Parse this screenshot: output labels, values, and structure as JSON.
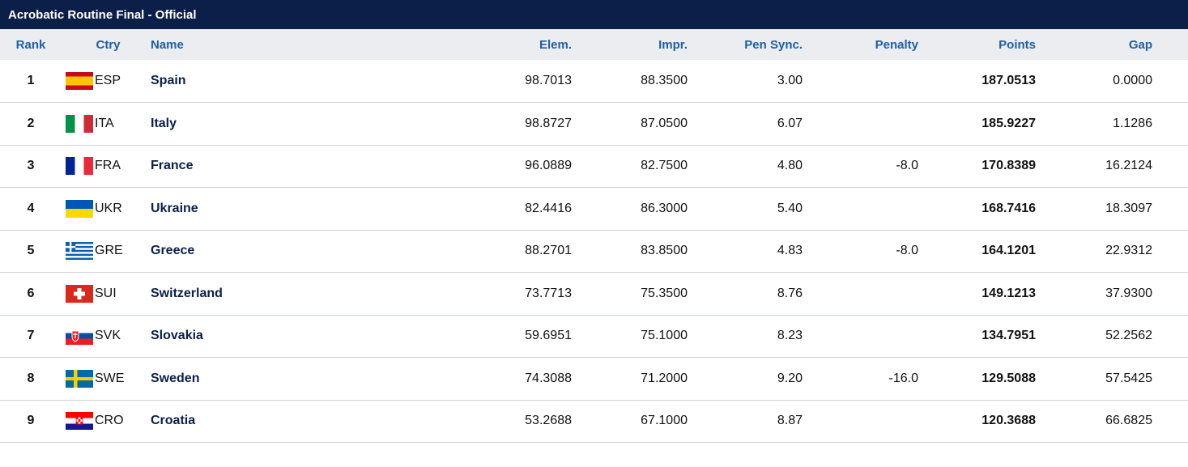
{
  "title": "Acrobatic Routine Final  -  Official",
  "headers": {
    "rank": "Rank",
    "ctry": "Ctry",
    "name": "Name",
    "elem": "Elem.",
    "impr": "Impr.",
    "pensync": "Pen Sync.",
    "penalty": "Penalty",
    "points": "Points",
    "gap": "Gap"
  },
  "rows": [
    {
      "rank": "1",
      "ctry": "ESP",
      "flag": "esp-flag-icon",
      "name": "Spain",
      "elem": "98.7013",
      "impr": "88.3500",
      "pensync": "3.00",
      "penalty": "",
      "points": "187.0513",
      "gap": "0.0000"
    },
    {
      "rank": "2",
      "ctry": "ITA",
      "flag": "ita-flag-icon",
      "name": "Italy",
      "elem": "98.8727",
      "impr": "87.0500",
      "pensync": "6.07",
      "penalty": "",
      "points": "185.9227",
      "gap": "1.1286"
    },
    {
      "rank": "3",
      "ctry": "FRA",
      "flag": "fra-flag-icon",
      "name": "France",
      "elem": "96.0889",
      "impr": "82.7500",
      "pensync": "4.80",
      "penalty": "-8.0",
      "points": "170.8389",
      "gap": "16.2124"
    },
    {
      "rank": "4",
      "ctry": "UKR",
      "flag": "ukr-flag-icon",
      "name": "Ukraine",
      "elem": "82.4416",
      "impr": "86.3000",
      "pensync": "5.40",
      "penalty": "",
      "points": "168.7416",
      "gap": "18.3097"
    },
    {
      "rank": "5",
      "ctry": "GRE",
      "flag": "gre-flag-icon",
      "name": "Greece",
      "elem": "88.2701",
      "impr": "83.8500",
      "pensync": "4.83",
      "penalty": "-8.0",
      "points": "164.1201",
      "gap": "22.9312"
    },
    {
      "rank": "6",
      "ctry": "SUI",
      "flag": "sui-flag-icon",
      "name": "Switzerland",
      "elem": "73.7713",
      "impr": "75.3500",
      "pensync": "8.76",
      "penalty": "",
      "points": "149.1213",
      "gap": "37.9300"
    },
    {
      "rank": "7",
      "ctry": "SVK",
      "flag": "svk-flag-icon",
      "name": "Slovakia",
      "elem": "59.6951",
      "impr": "75.1000",
      "pensync": "8.23",
      "penalty": "",
      "points": "134.7951",
      "gap": "52.2562"
    },
    {
      "rank": "8",
      "ctry": "SWE",
      "flag": "swe-flag-icon",
      "name": "Sweden",
      "elem": "74.3088",
      "impr": "71.2000",
      "pensync": "9.20",
      "penalty": "-16.0",
      "points": "129.5088",
      "gap": "57.5425"
    },
    {
      "rank": "9",
      "ctry": "CRO",
      "flag": "cro-flag-icon",
      "name": "Croatia",
      "elem": "53.2688",
      "impr": "67.1000",
      "pensync": "8.87",
      "penalty": "",
      "points": "120.3688",
      "gap": "66.6825"
    }
  ],
  "colors": {
    "title_bg": "#0b1f48",
    "header_bg": "#ebedf0",
    "header_text": "#1f5fa8",
    "name_text": "#0b1f48"
  }
}
